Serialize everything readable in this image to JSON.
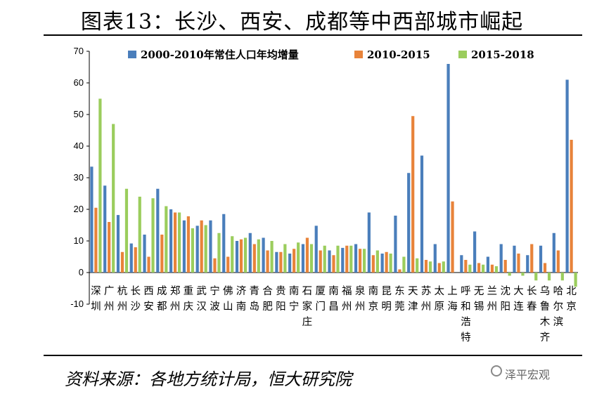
{
  "title": "图表13：长沙、西安、成都等中西部城市崛起",
  "source": "资料来源：各地方统计局，恒大研究院",
  "watermark": "泽平宏观",
  "chart_data": {
    "type": "bar",
    "ylim": [
      -10,
      70
    ],
    "yticks": [
      -10,
      0,
      10,
      20,
      30,
      40,
      50,
      60,
      70
    ],
    "legend_position": "top",
    "grid": false,
    "categories": [
      "深圳",
      "广州",
      "杭州",
      "长沙",
      "西安",
      "成都",
      "郑州",
      "重庆",
      "武汉",
      "宁波",
      "佛山",
      "济南",
      "青岛",
      "合肥",
      "贵阳",
      "南宁",
      "石家庄",
      "厦门",
      "南昌",
      "福州",
      "泉州",
      "南京",
      "昆明",
      "东莞",
      "天津",
      "苏州",
      "太原",
      "上海",
      "呼和浩特",
      "无锡",
      "兰州",
      "沈阳",
      "大连",
      "长春",
      "乌鲁木齐",
      "哈尔滨",
      "北京"
    ],
    "series": [
      {
        "name": "2000-2010年常住人口年均增量",
        "color": "#4a7ebb",
        "values": [
          33.5,
          27.5,
          18.2,
          9.2,
          12,
          26.5,
          20,
          16.5,
          14.8,
          16.5,
          18.5,
          10,
          12.5,
          11,
          6.5,
          6,
          9,
          14.8,
          7,
          7.8,
          9,
          19,
          6,
          18,
          31.5,
          37,
          9,
          66,
          5.5,
          13,
          5,
          9,
          8.5,
          5.5,
          8.5,
          12.5,
          61
        ]
      },
      {
        "name": "2010-2015",
        "color": "#e8833a",
        "values": [
          20.5,
          16,
          6.5,
          8,
          5,
          12,
          19,
          17.8,
          16.5,
          4.5,
          5,
          10.5,
          9,
          7,
          6.5,
          7.5,
          11,
          7,
          5.5,
          8.5,
          7.5,
          5.5,
          6.5,
          1,
          49.5,
          4,
          3,
          22.5,
          4,
          3,
          2.5,
          4,
          6,
          9,
          3,
          7,
          42
        ]
      },
      {
        "name": "2015-2018",
        "color": "#9bcd5d",
        "values": [
          55,
          47,
          26.5,
          24,
          23.5,
          21,
          19,
          14,
          15,
          12.5,
          11.5,
          11,
          10.5,
          10,
          9,
          9.5,
          9,
          8.5,
          8.5,
          8.5,
          7.5,
          7,
          6,
          5,
          4.5,
          3.5,
          3.5,
          0,
          2.5,
          2.5,
          2,
          -1,
          -1,
          -2.5,
          -2.5,
          -2.5,
          -4.5
        ]
      }
    ]
  }
}
